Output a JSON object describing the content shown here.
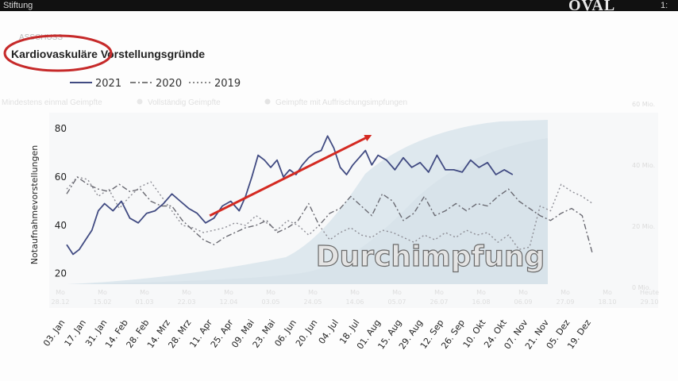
{
  "window": {
    "left_caption": "Stiftung",
    "logo": "OVAL",
    "right_caption": "1:"
  },
  "chart_data": {
    "type": "line",
    "title": "Kardiovaskuläre Vorstellungsgründe",
    "title_faded_prefix": "ASSCHUSS",
    "ylabel": "Notaufnahmevorstellungen",
    "ylim": [
      14,
      84
    ],
    "yticks": [
      20,
      40,
      60,
      80
    ],
    "xlabels": [
      "03. Jan",
      "17. Jan",
      "31. Jan",
      "14. Feb",
      "28. Feb",
      "14. Mrz",
      "28. Mrz",
      "11. Apr",
      "25. Apr",
      "09. Mai",
      "23. Mai",
      "06. Jun",
      "20. Jun",
      "04. Jul",
      "18. Jul",
      "01. Aug",
      "15. Aug",
      "29. Aug",
      "12. Sep",
      "26. Sep",
      "10. Okt",
      "24. Okt",
      "07. Nov",
      "21. Nov",
      "05. Dez",
      "19. Dez"
    ],
    "legend": [
      {
        "name": "2021",
        "style": "solid"
      },
      {
        "name": "2020",
        "style": "dash-dot"
      },
      {
        "name": "2019",
        "style": "dotted"
      }
    ],
    "series": [
      {
        "name": "2021",
        "color": "#414b82",
        "x": [
          0,
          0.3,
          0.6,
          0.9,
          1.2,
          1.5,
          1.8,
          2.2,
          2.6,
          3.0,
          3.4,
          3.8,
          4.2,
          4.6,
          5.0,
          5.4,
          5.8,
          6.2,
          6.6,
          7.0,
          7.4,
          7.8,
          8.2,
          8.5,
          8.8,
          9.1,
          9.4,
          9.7,
          10.0,
          10.3,
          10.6,
          10.9,
          11.2,
          11.5,
          11.8,
          12.1,
          12.4,
          12.7,
          13.0,
          13.3,
          13.6,
          13.9,
          14.2,
          14.5,
          14.8,
          15.2,
          15.6,
          16.0,
          16.4,
          16.8,
          17.2,
          17.6,
          18.0,
          18.4,
          18.8,
          19.2,
          19.6,
          20.0,
          20.4,
          20.8,
          21.2
        ],
        "values": [
          32,
          28,
          30,
          34,
          38,
          46,
          49,
          46,
          50,
          43,
          41,
          45,
          46,
          49,
          53,
          50,
          47,
          45,
          41,
          43,
          48,
          50,
          46,
          52,
          60,
          69,
          67,
          64,
          67,
          60,
          63,
          61,
          65,
          68,
          70,
          71,
          77,
          72,
          64,
          61,
          65,
          68,
          71,
          65,
          69,
          67,
          63,
          68,
          64,
          66,
          62,
          69,
          63,
          63,
          62,
          67,
          64,
          66,
          61,
          63,
          61
        ]
      },
      {
        "name": "2020",
        "color": "#6a6a72",
        "x": [
          0,
          0.5,
          1.0,
          1.5,
          2.0,
          2.5,
          3.0,
          3.5,
          4.0,
          4.5,
          5.0,
          5.5,
          6.0,
          6.5,
          7.0,
          7.5,
          8.0,
          8.5,
          9.0,
          9.5,
          10.0,
          10.5,
          11.0,
          11.5,
          12.0,
          12.5,
          13.0,
          13.5,
          14.0,
          14.5,
          15.0,
          15.5,
          16.0,
          16.5,
          17.0,
          17.5,
          18.0,
          18.5,
          19.0,
          19.5,
          20.0,
          20.5,
          21.0,
          21.5,
          22.0,
          22.5,
          23.0,
          23.5,
          24.0,
          24.5,
          25.0
        ],
        "values": [
          53,
          60,
          57,
          55,
          54,
          57,
          54,
          55,
          50,
          48,
          48,
          42,
          38,
          34,
          32,
          35,
          37,
          39,
          40,
          42,
          37,
          39,
          42,
          49,
          40,
          45,
          47,
          52,
          48,
          44,
          53,
          50,
          42,
          45,
          52,
          44,
          46,
          49,
          46,
          49,
          48,
          52,
          55,
          50,
          47,
          44,
          42,
          45,
          47,
          44,
          28
        ]
      },
      {
        "name": "2019",
        "color": "#8e8e96",
        "x": [
          0,
          0.5,
          1.0,
          1.5,
          2.0,
          2.5,
          3.0,
          3.5,
          4.0,
          4.5,
          5.0,
          5.5,
          6.0,
          6.5,
          7.0,
          7.5,
          8.0,
          8.5,
          9.0,
          9.5,
          10.0,
          10.5,
          11.0,
          11.5,
          12.0,
          12.5,
          13.0,
          13.5,
          14.0,
          14.5,
          15.0,
          15.5,
          16.0,
          16.5,
          17.0,
          17.5,
          18.0,
          18.5,
          19.0,
          19.5,
          20.0,
          20.5,
          21.0,
          21.5,
          22.0,
          22.5,
          23.0,
          23.5,
          24.0,
          24.5,
          25.0
        ],
        "values": [
          55,
          60,
          59,
          52,
          55,
          47,
          52,
          56,
          58,
          52,
          46,
          40,
          39,
          37,
          38,
          39,
          41,
          40,
          44,
          41,
          38,
          42,
          40,
          36,
          40,
          34,
          37,
          39,
          36,
          35,
          38,
          37,
          35,
          33,
          36,
          34,
          37,
          35,
          38,
          36,
          37,
          33,
          36,
          30,
          31,
          48,
          46,
          57,
          54,
          52,
          49
        ]
      }
    ],
    "background_figure": {
      "legend_items": [
        "Mindestens einmal Geimpfte",
        "Vollständig Geimpfte",
        "Geimpfte mit Auffrischungsimpfungen"
      ],
      "right_axis_labels": [
        "60 Mio.",
        "40 Mio.",
        "20 Mio.",
        "0 Mio."
      ],
      "date_labels": [
        "Mo 28.12",
        "Mo 15.02",
        "Mo 01.03",
        "Mo 22.03",
        "Mo 12.04",
        "Mo 03.05",
        "Mo 24.05",
        "Mo 14.06",
        "Mo 05.07",
        "Mo 26.07",
        "Mo 16.08",
        "Mo 06.09",
        "Mo 27.09",
        "Mo 18.10",
        "Heute 29.10"
      ]
    },
    "annotations": {
      "overlay_text": "Durchimpfung",
      "arrow": {
        "from_x": 6.8,
        "from_y": 44,
        "to_x": 14.4,
        "to_y": 77
      }
    }
  }
}
